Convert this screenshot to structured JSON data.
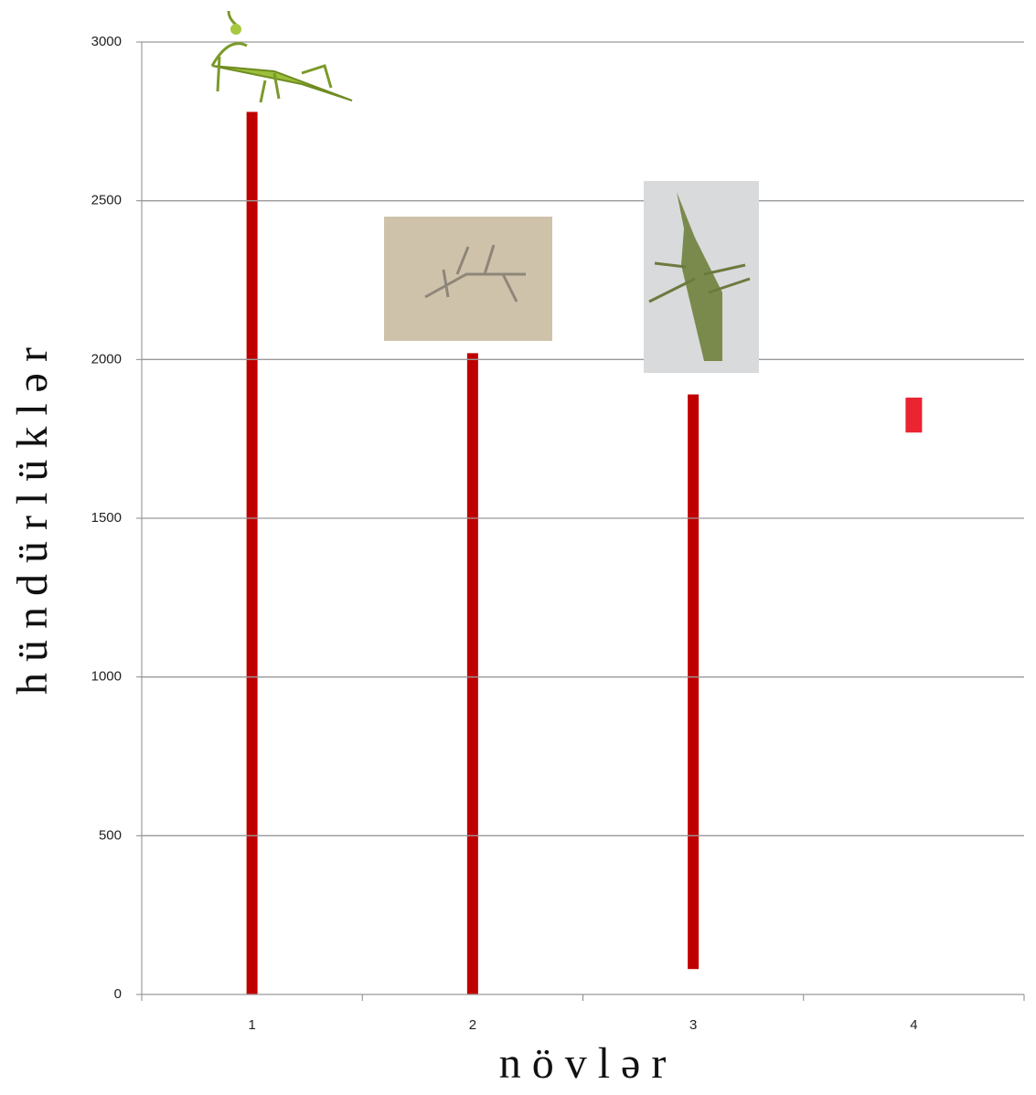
{
  "chart_data": {
    "type": "floating_bar",
    "x_label": "n ö v l ə r",
    "y_label": "h ü n d ü r l ü k l ə r",
    "categories": [
      "1",
      "2",
      "3",
      "4"
    ],
    "low": [
      0,
      0,
      80,
      1770
    ],
    "high": [
      2780,
      2020,
      1890,
      1880
    ],
    "colors": [
      "#c00000",
      "#c00000",
      "#c00000",
      "#ea2430"
    ],
    "ylim": [
      0,
      3000
    ],
    "yticks": [
      0,
      500,
      1000,
      1500,
      2000,
      2500,
      3000
    ],
    "grid": true
  }
}
